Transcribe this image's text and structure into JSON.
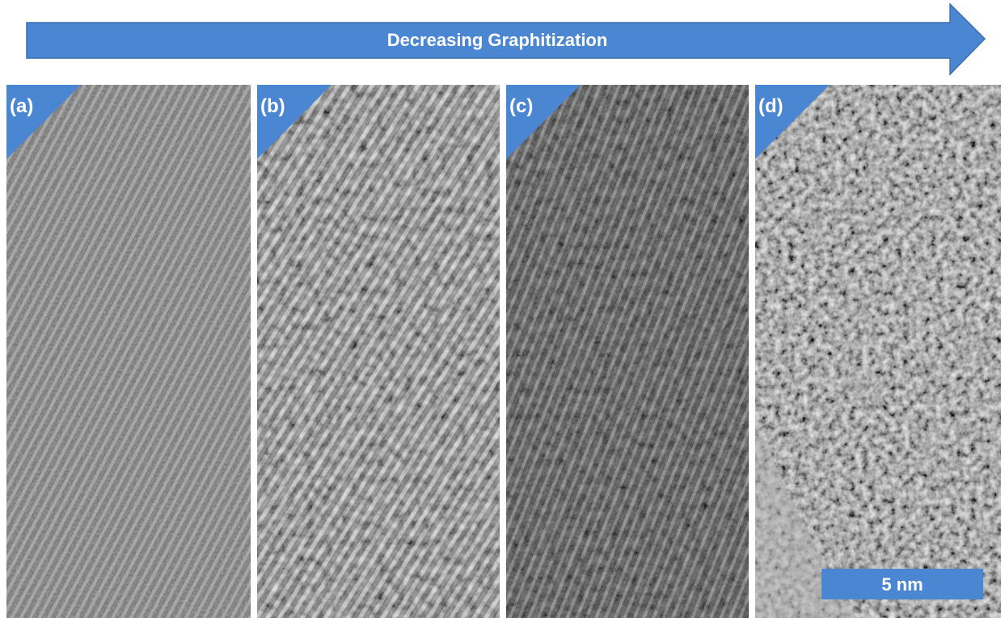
{
  "arrow": {
    "label": "Decreasing Graphitization"
  },
  "panels": [
    {
      "label": "(a)"
    },
    {
      "label": "(b)"
    },
    {
      "label": "(c)"
    },
    {
      "label": "(d)"
    }
  ],
  "scale_bar": {
    "label": "5 nm"
  }
}
